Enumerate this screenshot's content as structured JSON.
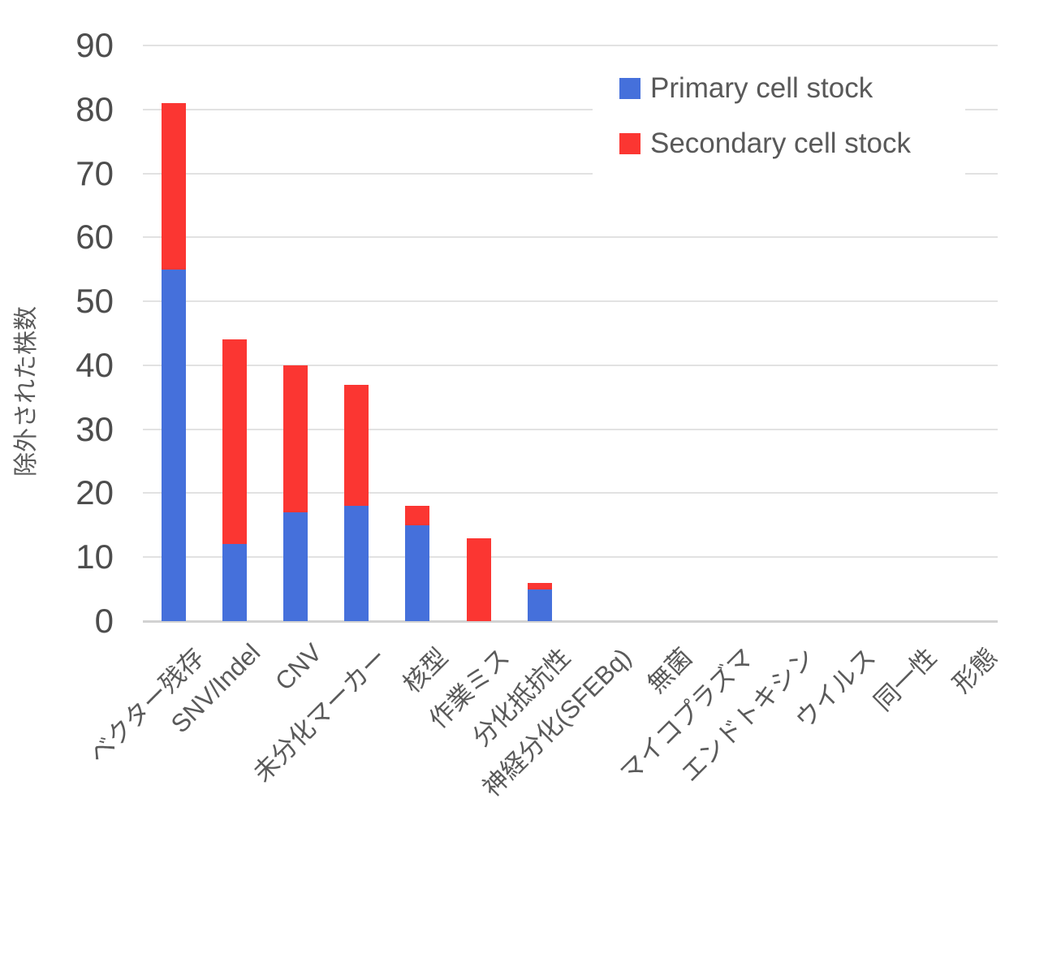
{
  "chart_data": {
    "type": "bar",
    "stacked": true,
    "title": "",
    "xlabel": "",
    "ylabel": "除外された株数",
    "ylim": [
      0,
      90
    ],
    "yticks": [
      90,
      80,
      70,
      60,
      50,
      40,
      30,
      20,
      10,
      0
    ],
    "grid": "horizontal",
    "legend_position": "top-right-inside",
    "categories": [
      "ベクター残存",
      "SNV/Indel",
      "CNV",
      "未分化マーカー",
      "核型",
      "作業ミス",
      "分化抵抗性",
      "神経分化(SFEBq)",
      "無菌",
      "マイコプラズマ",
      "エンドトキシン",
      "ウイルス",
      "同一性",
      "形態"
    ],
    "series": [
      {
        "name": "Primary cell stock",
        "color": "#4570DB",
        "values": [
          55,
          12,
          17,
          18,
          15,
          0,
          5,
          0,
          0,
          0,
          0,
          0,
          0,
          0
        ]
      },
      {
        "name": "Secondary cell stock",
        "color": "#FB3632",
        "values": [
          26,
          32,
          23,
          19,
          3,
          13,
          1,
          0,
          0,
          0,
          0,
          0,
          0,
          0
        ]
      }
    ],
    "totals": [
      81,
      44,
      40,
      37,
      18,
      13,
      6,
      0,
      0,
      0,
      0,
      0,
      0,
      0
    ]
  },
  "colors": {
    "grid": "#E2E2E2",
    "axis_line": "#D2D2D2",
    "tick_text": "#4D4D4D",
    "label_text": "#5A5A5A"
  }
}
